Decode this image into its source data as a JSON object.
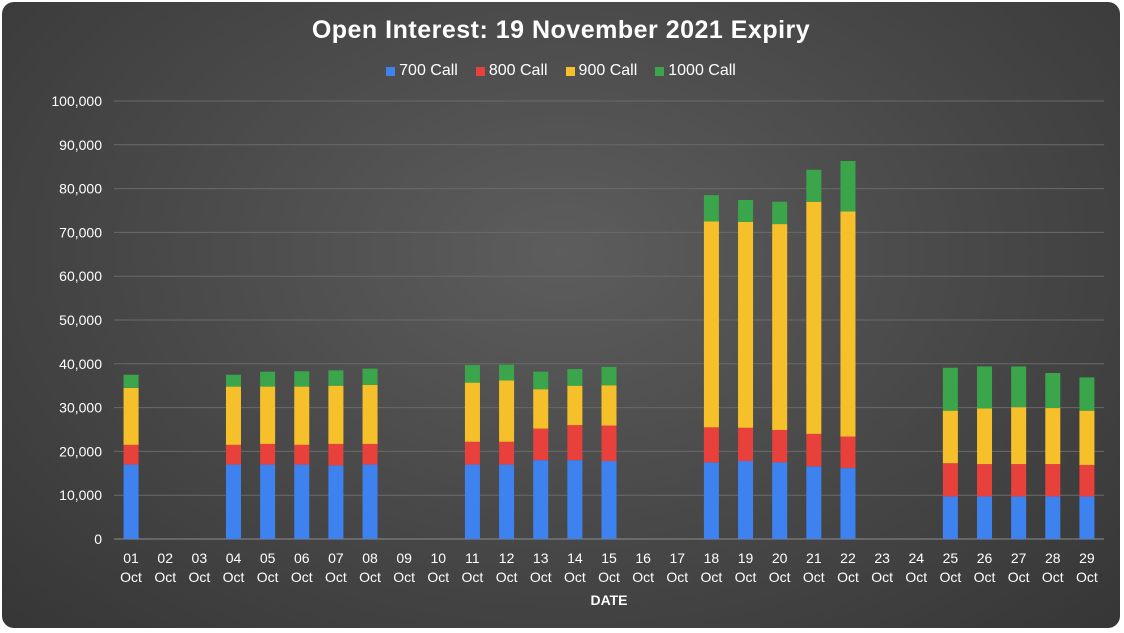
{
  "chart_data": {
    "type": "bar",
    "stacked": true,
    "title": "Open Interest: 19 November 2021 Expiry",
    "xlabel": "DATE",
    "ylabel": "",
    "ylim": [
      0,
      100000
    ],
    "yticks": [
      "0",
      "10,000",
      "20,000",
      "30,000",
      "40,000",
      "50,000",
      "60,000",
      "70,000",
      "80,000",
      "90,000",
      "100,000"
    ],
    "ytick_values": [
      0,
      10000,
      20000,
      30000,
      40000,
      50000,
      60000,
      70000,
      80000,
      90000,
      100000
    ],
    "grid": true,
    "legend_position": "top",
    "categories": [
      [
        "01",
        "Oct"
      ],
      [
        "02",
        "Oct"
      ],
      [
        "03",
        "Oct"
      ],
      [
        "04",
        "Oct"
      ],
      [
        "05",
        "Oct"
      ],
      [
        "06",
        "Oct"
      ],
      [
        "07",
        "Oct"
      ],
      [
        "08",
        "Oct"
      ],
      [
        "09",
        "Oct"
      ],
      [
        "10",
        "Oct"
      ],
      [
        "11",
        "Oct"
      ],
      [
        "12",
        "Oct"
      ],
      [
        "13",
        "Oct"
      ],
      [
        "14",
        "Oct"
      ],
      [
        "15",
        "Oct"
      ],
      [
        "16",
        "Oct"
      ],
      [
        "17",
        "Oct"
      ],
      [
        "18",
        "Oct"
      ],
      [
        "19",
        "Oct"
      ],
      [
        "20",
        "Oct"
      ],
      [
        "21",
        "Oct"
      ],
      [
        "22",
        "Oct"
      ],
      [
        "23",
        "Oct"
      ],
      [
        "24",
        "Oct"
      ],
      [
        "25",
        "Oct"
      ],
      [
        "26",
        "Oct"
      ],
      [
        "27",
        "Oct"
      ],
      [
        "28",
        "Oct"
      ],
      [
        "29",
        "Oct"
      ]
    ],
    "series": [
      {
        "name": "700 Call",
        "color": "#3d82ee",
        "values": [
          17000,
          0,
          0,
          17000,
          17000,
          17000,
          16800,
          17000,
          0,
          0,
          17000,
          17000,
          18000,
          18000,
          17800,
          0,
          0,
          17500,
          17800,
          17500,
          16600,
          16200,
          0,
          0,
          9700,
          9700,
          9700,
          9700,
          9700
        ]
      },
      {
        "name": "800 Call",
        "color": "#e8403a",
        "values": [
          4500,
          0,
          0,
          4500,
          4700,
          4500,
          4900,
          4700,
          0,
          0,
          5200,
          5200,
          7200,
          8000,
          8100,
          0,
          0,
          8000,
          7600,
          7400,
          7400,
          7200,
          0,
          0,
          7600,
          7400,
          7400,
          7400,
          7200
        ]
      },
      {
        "name": "900 Call",
        "color": "#f6c02a",
        "values": [
          13000,
          0,
          0,
          13300,
          13100,
          13300,
          13300,
          13500,
          0,
          0,
          13500,
          14000,
          9000,
          9000,
          9200,
          0,
          0,
          47000,
          47000,
          47000,
          53000,
          51400,
          0,
          0,
          12000,
          12700,
          13000,
          12800,
          12400
        ]
      },
      {
        "name": "1000 Call",
        "color": "#3aa54b",
        "values": [
          3000,
          0,
          0,
          2700,
          3400,
          3500,
          3500,
          3700,
          0,
          0,
          4000,
          3600,
          4000,
          3800,
          4200,
          0,
          0,
          6000,
          5000,
          5100,
          7300,
          11500,
          0,
          0,
          9800,
          9600,
          9300,
          8000,
          7600
        ]
      }
    ]
  }
}
